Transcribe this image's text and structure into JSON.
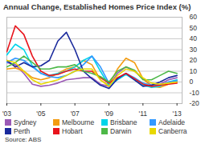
{
  "chart_data": {
    "type": "line",
    "title": "Annual Change, Established Homes Price Index (%)",
    "source": "Source: ABS",
    "x": [
      2003,
      2003.5,
      2004,
      2004.5,
      2005,
      2005.5,
      2006,
      2006.5,
      2007,
      2007.5,
      2008,
      2008.5,
      2009,
      2009.5,
      2010,
      2010.5,
      2011,
      2011.5,
      2012,
      2012.5,
      2013
    ],
    "series": [
      {
        "name": "Sydney",
        "color": "#9b59b6",
        "values": [
          18,
          16,
          8,
          -2,
          -4,
          -3,
          -1,
          2,
          3,
          4,
          4,
          -2,
          -4,
          8,
          14,
          10,
          3,
          -3,
          -2,
          2,
          4
        ]
      },
      {
        "name": "Melbourne",
        "color": "#f39c12",
        "values": [
          12,
          13,
          10,
          4,
          2,
          4,
          8,
          12,
          14,
          20,
          16,
          2,
          -3,
          12,
          22,
          18,
          3,
          -4,
          -5,
          -2,
          1
        ]
      },
      {
        "name": "Brisbane",
        "color": "#00d4ea",
        "values": [
          25,
          35,
          30,
          15,
          8,
          6,
          8,
          10,
          14,
          20,
          24,
          10,
          -3,
          2,
          7,
          2,
          -3,
          -5,
          -4,
          0,
          2
        ]
      },
      {
        "name": "Adelaide",
        "color": "#3399ff",
        "values": [
          18,
          22,
          20,
          14,
          8,
          5,
          4,
          6,
          10,
          16,
          24,
          14,
          -1,
          3,
          8,
          4,
          -1,
          -3,
          -3,
          0,
          1
        ]
      },
      {
        "name": "Perth",
        "color": "#1a2a9c",
        "values": [
          20,
          14,
          18,
          14,
          15,
          20,
          38,
          46,
          30,
          10,
          3,
          -3,
          -6,
          3,
          8,
          2,
          -4,
          -3,
          0,
          4,
          6
        ]
      },
      {
        "name": "Hobart",
        "color": "#e8141c",
        "values": [
          28,
          52,
          44,
          24,
          10,
          6,
          7,
          10,
          12,
          10,
          10,
          4,
          -1,
          4,
          8,
          3,
          -2,
          -4,
          -3,
          -2,
          -1
        ]
      },
      {
        "name": "Darwin",
        "color": "#4db848",
        "values": [
          14,
          18,
          24,
          18,
          12,
          12,
          14,
          14,
          16,
          10,
          8,
          5,
          0,
          10,
          14,
          11,
          2,
          2,
          6,
          10,
          8
        ]
      },
      {
        "name": "Canberra",
        "color": "#e8d800",
        "values": [
          20,
          18,
          10,
          2,
          -2,
          0,
          2,
          6,
          10,
          12,
          12,
          2,
          -4,
          6,
          12,
          10,
          4,
          -1,
          -2,
          -1,
          0
        ]
      }
    ],
    "xlim": [
      2003,
      2013.3
    ],
    "xticks": [
      {
        "value": 2003,
        "label": "'03"
      },
      {
        "value": 2005,
        "label": "'05"
      },
      {
        "value": 2007,
        "label": "'07"
      },
      {
        "value": 2009,
        "label": "'09"
      },
      {
        "value": 2011,
        "label": "'11"
      },
      {
        "value": 2013,
        "label": "'13"
      }
    ],
    "ylim": [
      -20,
      60
    ],
    "yticks": [
      -20,
      -10,
      0,
      10,
      20,
      30,
      40,
      50,
      60
    ],
    "grid": true,
    "legend": "bottom"
  }
}
